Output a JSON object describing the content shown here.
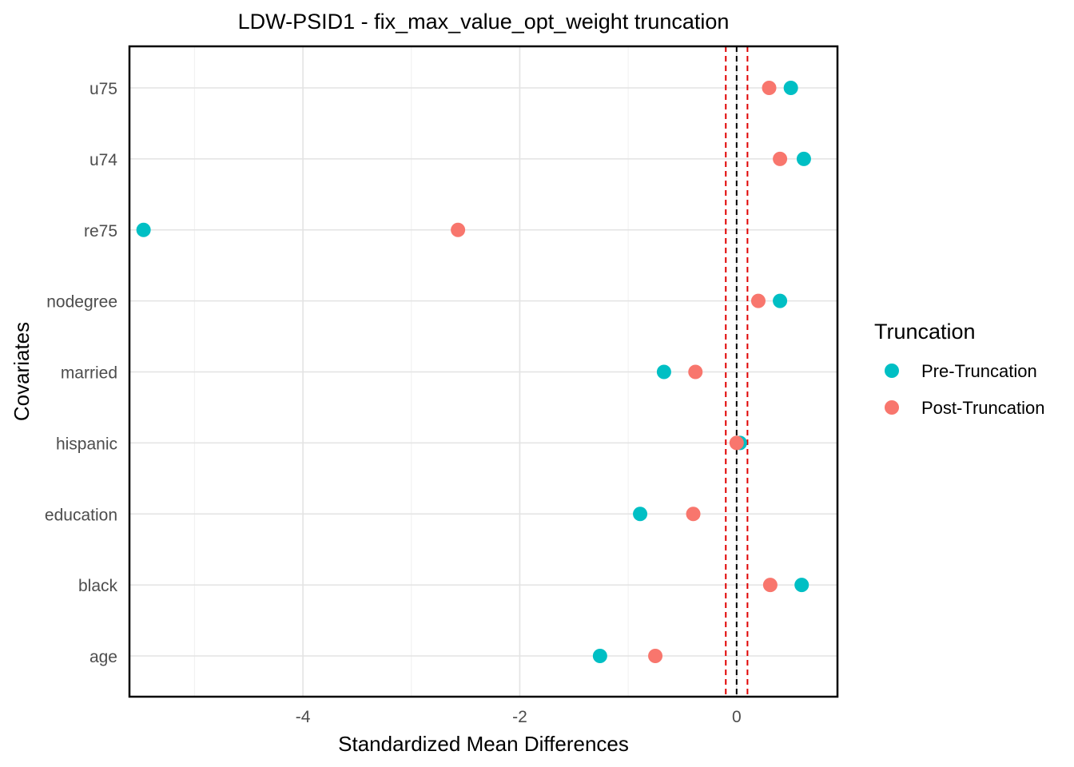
{
  "chart_data": {
    "type": "scatter",
    "title": "LDW-PSID1 - fix_max_value_opt_weight truncation",
    "xlabel": "Standardized Mean Differences",
    "ylabel": "Covariates",
    "categories": [
      "age",
      "black",
      "education",
      "hispanic",
      "married",
      "nodegree",
      "re75",
      "u74",
      "u75"
    ],
    "x_ticks": [
      -4,
      -2,
      0
    ],
    "x_tick_labels": [
      "-4",
      "-2",
      "0"
    ],
    "xlim": [
      -5.6,
      0.93
    ],
    "reference_lines": [
      {
        "x": 0,
        "style": "dashed",
        "color": "#000000"
      },
      {
        "x": -0.1,
        "style": "dashed",
        "color": "#e00000"
      },
      {
        "x": 0.1,
        "style": "dashed",
        "color": "#e00000"
      }
    ],
    "grid": true,
    "legend": {
      "title": "Truncation",
      "position": "right"
    },
    "series": [
      {
        "name": "Pre-Truncation",
        "color": "#00bfc4",
        "values": [
          -1.26,
          0.6,
          -0.89,
          0.03,
          -0.67,
          0.4,
          -5.47,
          0.62,
          0.5
        ]
      },
      {
        "name": "Post-Truncation",
        "color": "#f8766d",
        "values": [
          -0.75,
          0.31,
          -0.4,
          0.0,
          -0.38,
          0.2,
          -2.57,
          0.4,
          0.3
        ]
      }
    ]
  }
}
